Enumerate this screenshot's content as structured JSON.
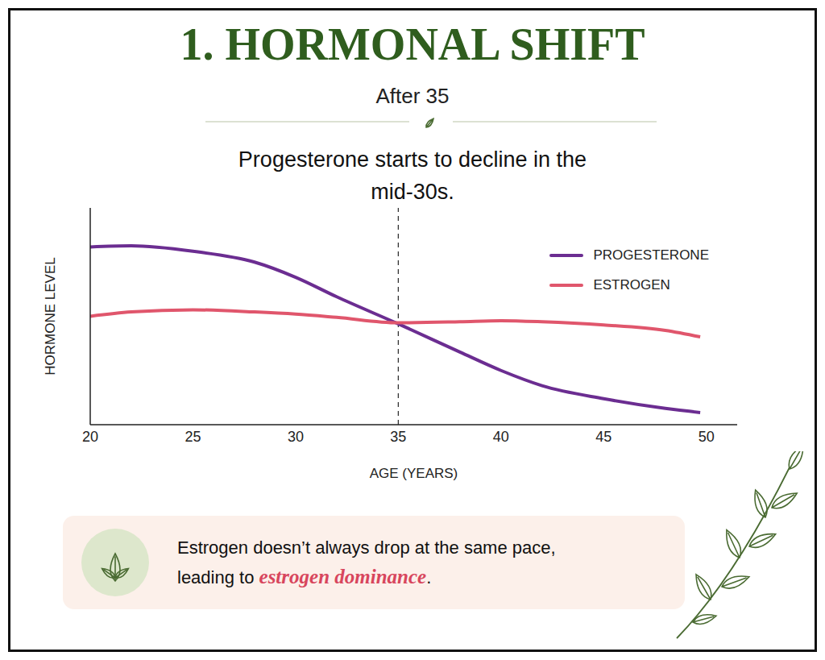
{
  "chart_data": {
    "type": "line",
    "title": "1. HORMONAL SHIFT",
    "subtitle": "After 35",
    "annotation": "Progesterone starts to decline in the mid-30s.",
    "note_parts": [
      "Estrogen doesn’t always drop at the same pace, leading to ",
      "estrogen dominance",
      "."
    ],
    "x_label": "AGE (YEARS)",
    "y_label": "HORMONE LEVEL",
    "x": [
      20,
      22,
      25,
      28,
      30,
      32,
      35,
      38,
      40,
      42,
      45,
      48,
      49.7
    ],
    "series": [
      {
        "name": "PROGESTERONE",
        "color": "#6b2d91",
        "values": [
          82,
          82.5,
          80,
          75,
          68,
          59,
          46.5,
          33.5,
          25,
          18,
          12,
          7.5,
          5.6
        ]
      },
      {
        "name": "ESTROGEN",
        "color": "#e0566c",
        "values": [
          50,
          52,
          53,
          52,
          51,
          49.5,
          47,
          47.5,
          48,
          47.5,
          46,
          43.5,
          40.5
        ]
      }
    ],
    "reference_x": 35,
    "xlim": [
      20,
      51.5
    ],
    "xticks": [
      20,
      25,
      30,
      35,
      40,
      45,
      50
    ],
    "ylim": [
      0,
      100
    ],
    "tick_labels": "x",
    "grid": false,
    "legend": "upper right"
  }
}
